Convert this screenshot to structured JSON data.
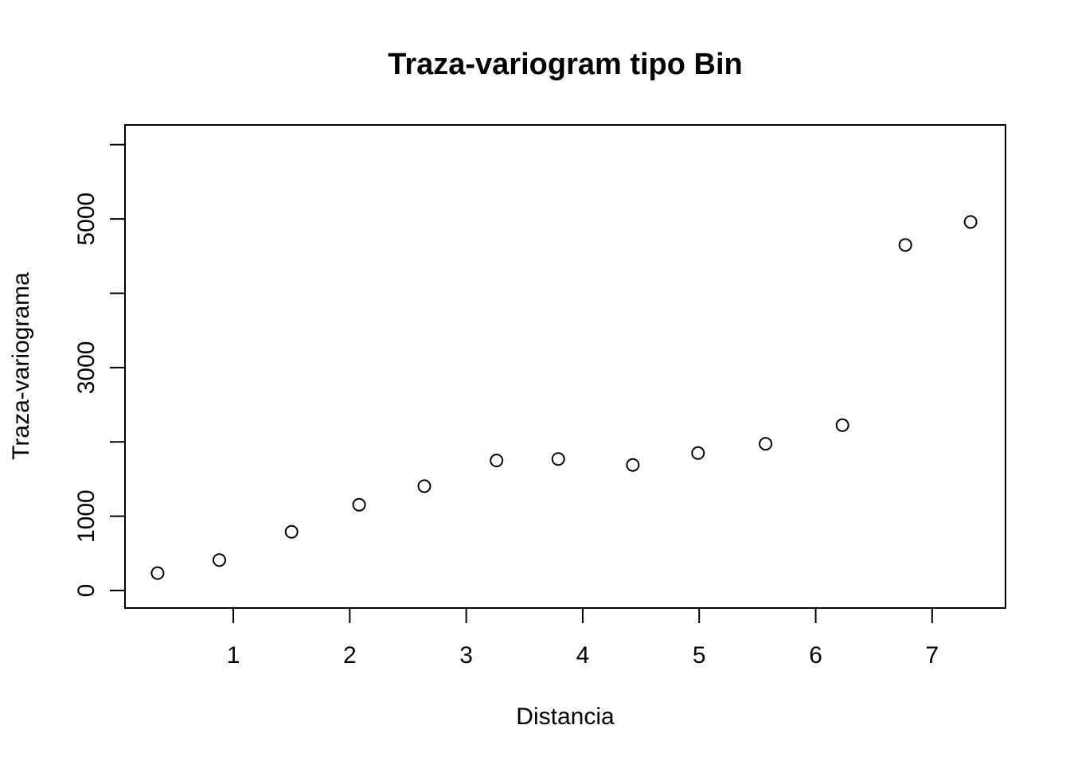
{
  "chart_data": {
    "type": "scatter",
    "title": "Traza-variogram tipo Bin",
    "xlabel": "Distancia",
    "ylabel": "Traza-variograma",
    "xlim": [
      0.07,
      7.63
    ],
    "ylim": [
      -235,
      6265
    ],
    "x_ticks": [
      1,
      2,
      3,
      4,
      5,
      6,
      7
    ],
    "x_tick_labels": [
      "1",
      "2",
      "3",
      "4",
      "5",
      "6",
      "7"
    ],
    "y_ticks": [
      0,
      1000,
      2000,
      3000,
      4000,
      5000,
      6000
    ],
    "y_tick_labels": [
      "0",
      "1000",
      "",
      "3000",
      "",
      "5000",
      ""
    ],
    "grid": false,
    "series": [
      {
        "x": [
          0.35,
          0.88,
          1.5,
          2.08,
          2.64,
          3.26,
          3.79,
          4.43,
          4.99,
          5.57,
          6.23,
          6.77,
          7.33
        ],
        "y": [
          235,
          410,
          790,
          1155,
          1405,
          1750,
          1770,
          1690,
          1850,
          1975,
          2225,
          4650,
          4960
        ]
      }
    ]
  }
}
